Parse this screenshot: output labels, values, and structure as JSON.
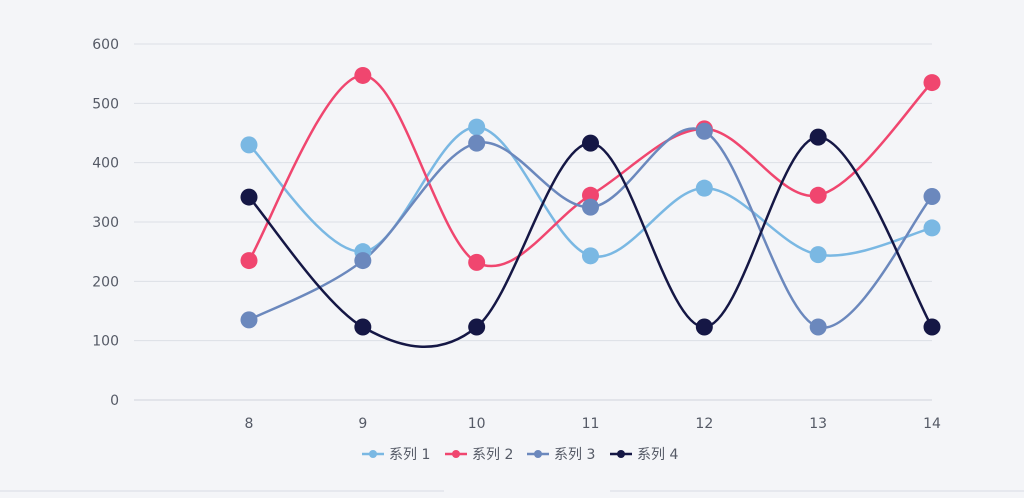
{
  "chart_data": {
    "type": "line",
    "title": "",
    "xlabel": "",
    "ylabel": "",
    "x": [
      "8",
      "9",
      "10",
      "11",
      "12",
      "13",
      "14"
    ],
    "ylim": [
      0,
      600
    ],
    "yticks": [
      "0",
      "100",
      "200",
      "300",
      "400",
      "500",
      "600"
    ],
    "grid": true,
    "smooth": true,
    "legend_position": "bottom",
    "series": [
      {
        "name": "系列 1",
        "color": "#7ab8e3",
        "values": [
          430,
          250,
          460,
          243,
          357,
          245,
          290
        ]
      },
      {
        "name": "系列 2",
        "color": "#f0466f",
        "values": [
          235,
          547,
          232,
          345,
          457,
          345,
          535
        ]
      },
      {
        "name": "系列 3",
        "color": "#6b88bd",
        "values": [
          135,
          235,
          433,
          325,
          453,
          123,
          343
        ]
      },
      {
        "name": "系列 4",
        "color": "#151745",
        "values": [
          342,
          123,
          123,
          433,
          123,
          443,
          123
        ]
      }
    ]
  }
}
